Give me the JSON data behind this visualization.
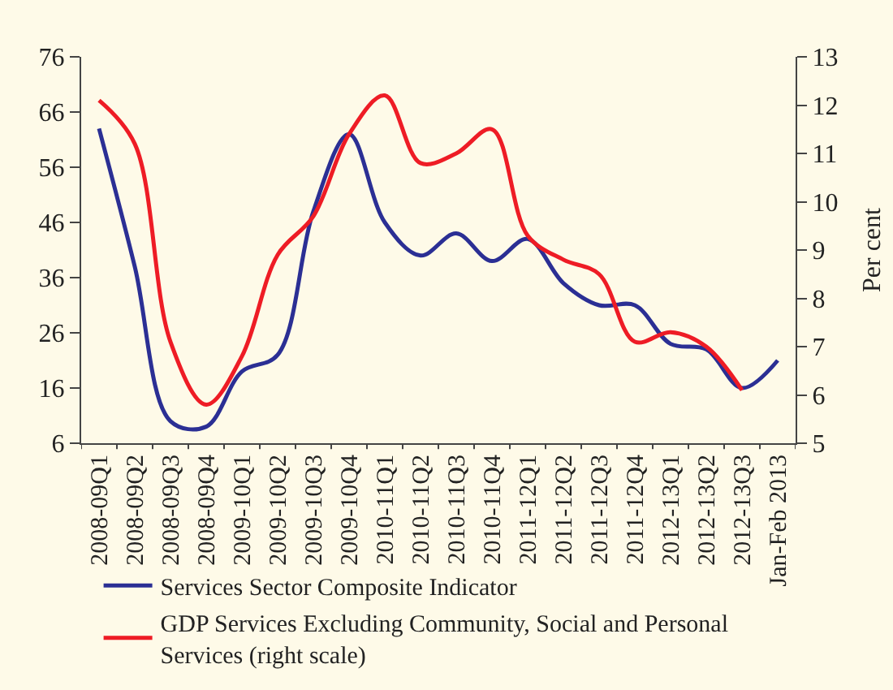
{
  "chart_data": {
    "type": "line",
    "categories": [
      "2008-09Q1",
      "2008-09Q2",
      "2008-09Q3",
      "2008-09Q4",
      "2009-10Q1",
      "2009-10Q2",
      "2009-10Q3",
      "2009-10Q4",
      "2010-11Q1",
      "2010-11Q2",
      "2010-11Q3",
      "2010-11Q4",
      "2011-12Q1",
      "2011-12Q2",
      "2011-12Q3",
      "2011-12Q4",
      "2012-13Q1",
      "2012-13Q2",
      "2012-13Q3",
      "Jan-Feb 2013"
    ],
    "series": [
      {
        "name": "Services Sector Composite Indicator",
        "color": "#2b2f94",
        "values": [
          63,
          38,
          10,
          9,
          19,
          22,
          48,
          62,
          46,
          40,
          44,
          39,
          43,
          35,
          31,
          31,
          24,
          23,
          16,
          21
        ]
      },
      {
        "name": "GDP Services Excluding Community, Social and Personal Services (right scale)",
        "color": "#ee1c25",
        "axis": "y2",
        "values": [
          12.1,
          11.2,
          7.1,
          5.8,
          6.8,
          8.9,
          9.7,
          11.4,
          12.2,
          10.8,
          11.0,
          11.5,
          9.3,
          8.8,
          8.5,
          7.1,
          7.3,
          7.0,
          6.1,
          null
        ]
      }
    ],
    "ylim": [
      6,
      76
    ],
    "yticks": [
      6,
      16,
      26,
      36,
      46,
      56,
      66,
      76
    ],
    "y2lim": [
      5,
      13
    ],
    "y2ticks": [
      5,
      6,
      7,
      8,
      9,
      10,
      11,
      12,
      13
    ],
    "y2label": "Per cent",
    "grid": false,
    "legend": "bottom",
    "marker": "none",
    "line_style": "solid"
  }
}
